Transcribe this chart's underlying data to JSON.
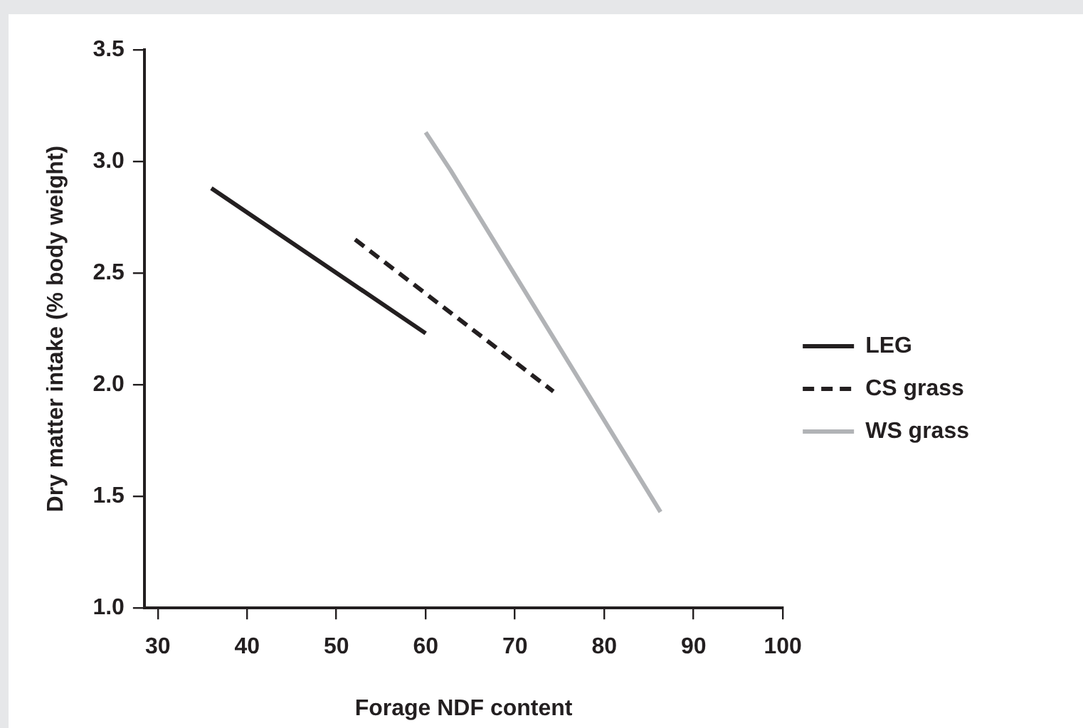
{
  "chart_data": {
    "type": "line",
    "xlabel": "Forage NDF content",
    "ylabel": "Dry matter intake (% body weight)",
    "xlim": [
      28.5,
      100
    ],
    "xticks": [
      30,
      40,
      50,
      60,
      70,
      80,
      90,
      100
    ],
    "ylim": [
      1.0,
      3.5
    ],
    "yticks": [
      {
        "value": 1.0,
        "label": "1.0"
      },
      {
        "value": 1.5,
        "label": "1.5"
      },
      {
        "value": 2.0,
        "label": "2.0"
      },
      {
        "value": 2.5,
        "label": "2.5"
      },
      {
        "value": 3.0,
        "label": "3.0"
      },
      {
        "value": 3.5,
        "label": "3.5"
      }
    ],
    "grid": false,
    "legend": "right",
    "marker": "none",
    "series": [
      {
        "name": "LEG",
        "color": "#231f20",
        "x": [
          36,
          60
        ],
        "values": [
          2.88,
          2.23
        ],
        "line_style": "solid"
      },
      {
        "name": "CS grass",
        "color": "#231f20",
        "x": [
          52.1,
          74.3
        ],
        "values": [
          2.65,
          1.97
        ],
        "line_style": "dashed"
      },
      {
        "name": "WS grass",
        "color": "#b1b3b6",
        "x": [
          60,
          62.8,
          86.3
        ],
        "values": [
          3.13,
          2.96,
          1.43
        ],
        "line_style": "solid"
      }
    ]
  }
}
